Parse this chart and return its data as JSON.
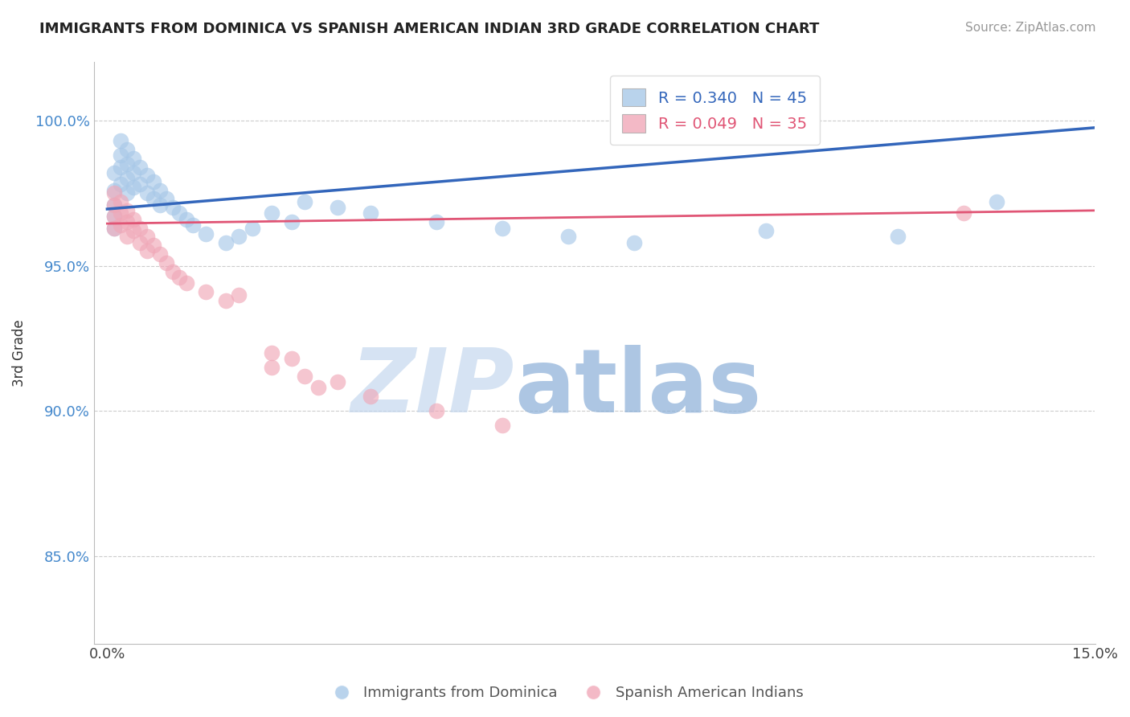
{
  "title": "IMMIGRANTS FROM DOMINICA VS SPANISH AMERICAN INDIAN 3RD GRADE CORRELATION CHART",
  "source": "Source: ZipAtlas.com",
  "ylabel": "3rd Grade",
  "xlim_min": 0.0,
  "xlim_max": 0.15,
  "ylim_min": 0.82,
  "ylim_max": 1.02,
  "xticklabels": [
    "0.0%",
    "15.0%"
  ],
  "ytick_positions": [
    0.85,
    0.9,
    0.95,
    1.0
  ],
  "yticklabels": [
    "85.0%",
    "90.0%",
    "95.0%",
    "100.0%"
  ],
  "R_blue": 0.34,
  "N_blue": 45,
  "R_pink": 0.049,
  "N_pink": 35,
  "legend_entries": [
    "Immigrants from Dominica",
    "Spanish American Indians"
  ],
  "blue_color": "#A8C8E8",
  "pink_color": "#F0A8B8",
  "blue_line_color": "#3366BB",
  "pink_line_color": "#E05575",
  "watermark_zip": "ZIP",
  "watermark_atlas": "atlas",
  "watermark_color_zip": "#C5D8EE",
  "watermark_color_atlas": "#8BAFD8",
  "blue_points_x": [
    0.001,
    0.001,
    0.001,
    0.001,
    0.001,
    0.002,
    0.002,
    0.002,
    0.002,
    0.003,
    0.003,
    0.003,
    0.003,
    0.004,
    0.004,
    0.004,
    0.005,
    0.005,
    0.006,
    0.006,
    0.007,
    0.007,
    0.008,
    0.008,
    0.009,
    0.01,
    0.011,
    0.012,
    0.013,
    0.015,
    0.018,
    0.02,
    0.022,
    0.025,
    0.028,
    0.03,
    0.035,
    0.04,
    0.05,
    0.06,
    0.07,
    0.08,
    0.1,
    0.12,
    0.135
  ],
  "blue_points_y": [
    0.982,
    0.976,
    0.971,
    0.967,
    0.963,
    0.993,
    0.988,
    0.984,
    0.978,
    0.99,
    0.985,
    0.98,
    0.975,
    0.987,
    0.982,
    0.977,
    0.984,
    0.978,
    0.981,
    0.975,
    0.979,
    0.973,
    0.976,
    0.971,
    0.973,
    0.97,
    0.968,
    0.966,
    0.964,
    0.961,
    0.958,
    0.96,
    0.963,
    0.968,
    0.965,
    0.972,
    0.97,
    0.968,
    0.965,
    0.963,
    0.96,
    0.958,
    0.962,
    0.96,
    0.972
  ],
  "pink_points_x": [
    0.001,
    0.001,
    0.001,
    0.001,
    0.002,
    0.002,
    0.002,
    0.003,
    0.003,
    0.003,
    0.004,
    0.004,
    0.005,
    0.005,
    0.006,
    0.006,
    0.007,
    0.008,
    0.009,
    0.01,
    0.011,
    0.012,
    0.015,
    0.018,
    0.02,
    0.025,
    0.025,
    0.028,
    0.03,
    0.032,
    0.035,
    0.04,
    0.05,
    0.06,
    0.13
  ],
  "pink_points_y": [
    0.975,
    0.971,
    0.967,
    0.963,
    0.972,
    0.968,
    0.964,
    0.969,
    0.965,
    0.96,
    0.966,
    0.962,
    0.963,
    0.958,
    0.96,
    0.955,
    0.957,
    0.954,
    0.951,
    0.948,
    0.946,
    0.944,
    0.941,
    0.938,
    0.94,
    0.92,
    0.915,
    0.918,
    0.912,
    0.908,
    0.91,
    0.905,
    0.9,
    0.895,
    0.968
  ]
}
